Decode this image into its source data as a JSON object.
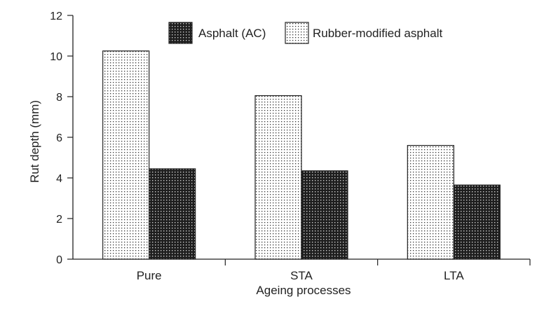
{
  "chart_data": {
    "type": "bar",
    "title": "",
    "xlabel": "Ageing processes",
    "ylabel": "Rut depth (mm)",
    "ylim": [
      0,
      12
    ],
    "yticks": [
      0,
      2,
      4,
      6,
      8,
      10,
      12
    ],
    "categories": [
      "Pure",
      "STA",
      "LTA"
    ],
    "series": [
      {
        "name": "Rubber-modified asphalt",
        "values": [
          10.25,
          8.05,
          5.6
        ],
        "pattern": "light-dots"
      },
      {
        "name": "Asphalt (AC)",
        "values": [
          4.45,
          4.35,
          3.65
        ],
        "pattern": "dark-dots"
      }
    ],
    "legend": {
      "position": "top-right",
      "order": [
        "Asphalt (AC)",
        "Rubber-modified asphalt"
      ]
    },
    "grid": false
  }
}
